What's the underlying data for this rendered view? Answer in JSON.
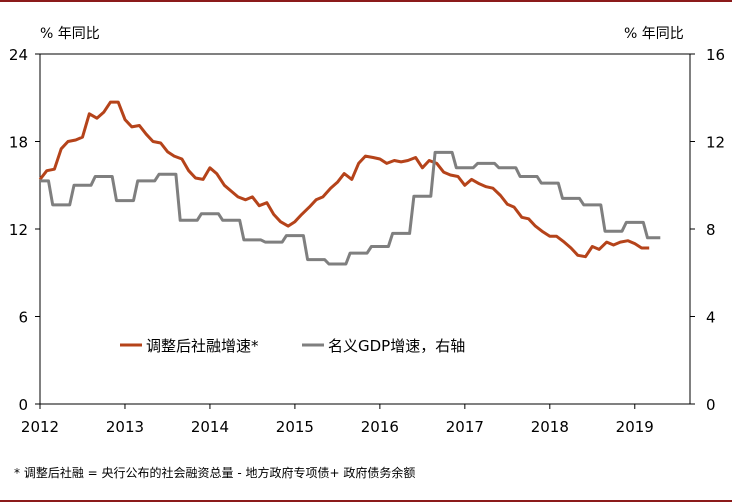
{
  "chart_data": {
    "type": "line",
    "left_axis_label": "% 年同比",
    "right_axis_label": "% 年同比",
    "x_ticks": [
      "2012",
      "2013",
      "2014",
      "2015",
      "2016",
      "2017",
      "2018",
      "2019"
    ],
    "y_left": {
      "lim": [
        0,
        24
      ],
      "ticks": [
        0,
        6,
        12,
        18,
        24
      ]
    },
    "y_right": {
      "lim": [
        0,
        16
      ],
      "ticks": [
        0,
        4,
        8,
        12,
        16
      ]
    },
    "grid": false,
    "legend_placement": "lower-left",
    "series": [
      {
        "name": "调整后社融增速*",
        "axis": "left",
        "color": "#b5431a",
        "points": [
          [
            2012.0,
            15.4
          ],
          [
            2012.08,
            16.0
          ],
          [
            2012.17,
            16.1
          ],
          [
            2012.25,
            17.5
          ],
          [
            2012.33,
            18.0
          ],
          [
            2012.42,
            18.1
          ],
          [
            2012.5,
            18.3
          ],
          [
            2012.58,
            19.9
          ],
          [
            2012.67,
            19.6
          ],
          [
            2012.75,
            20.0
          ],
          [
            2012.83,
            20.7
          ],
          [
            2012.92,
            20.7
          ],
          [
            2013.0,
            19.5
          ],
          [
            2013.08,
            19.0
          ],
          [
            2013.17,
            19.1
          ],
          [
            2013.25,
            18.5
          ],
          [
            2013.33,
            18.0
          ],
          [
            2013.42,
            17.9
          ],
          [
            2013.5,
            17.3
          ],
          [
            2013.58,
            17.0
          ],
          [
            2013.67,
            16.8
          ],
          [
            2013.75,
            16.0
          ],
          [
            2013.83,
            15.5
          ],
          [
            2013.92,
            15.4
          ],
          [
            2014.0,
            16.2
          ],
          [
            2014.08,
            15.8
          ],
          [
            2014.17,
            15.0
          ],
          [
            2014.25,
            14.6
          ],
          [
            2014.33,
            14.2
          ],
          [
            2014.42,
            14.0
          ],
          [
            2014.5,
            14.2
          ],
          [
            2014.58,
            13.6
          ],
          [
            2014.67,
            13.8
          ],
          [
            2014.75,
            13.0
          ],
          [
            2014.83,
            12.5
          ],
          [
            2014.92,
            12.2
          ],
          [
            2015.0,
            12.5
          ],
          [
            2015.08,
            13.0
          ],
          [
            2015.17,
            13.5
          ],
          [
            2015.25,
            14.0
          ],
          [
            2015.33,
            14.2
          ],
          [
            2015.42,
            14.8
          ],
          [
            2015.5,
            15.2
          ],
          [
            2015.58,
            15.8
          ],
          [
            2015.67,
            15.4
          ],
          [
            2015.75,
            16.5
          ],
          [
            2015.83,
            17.0
          ],
          [
            2015.92,
            16.9
          ],
          [
            2016.0,
            16.8
          ],
          [
            2016.08,
            16.5
          ],
          [
            2016.17,
            16.7
          ],
          [
            2016.25,
            16.6
          ],
          [
            2016.33,
            16.7
          ],
          [
            2016.42,
            16.9
          ],
          [
            2016.5,
            16.2
          ],
          [
            2016.58,
            16.7
          ],
          [
            2016.67,
            16.5
          ],
          [
            2016.75,
            15.9
          ],
          [
            2016.83,
            15.7
          ],
          [
            2016.92,
            15.6
          ],
          [
            2017.0,
            15.0
          ],
          [
            2017.08,
            15.4
          ],
          [
            2017.17,
            15.1
          ],
          [
            2017.25,
            14.9
          ],
          [
            2017.33,
            14.8
          ],
          [
            2017.42,
            14.3
          ],
          [
            2017.5,
            13.7
          ],
          [
            2017.58,
            13.5
          ],
          [
            2017.67,
            12.8
          ],
          [
            2017.75,
            12.7
          ],
          [
            2017.83,
            12.2
          ],
          [
            2017.92,
            11.8
          ],
          [
            2018.0,
            11.5
          ],
          [
            2018.08,
            11.5
          ],
          [
            2018.17,
            11.1
          ],
          [
            2018.25,
            10.7
          ],
          [
            2018.33,
            10.2
          ],
          [
            2018.42,
            10.1
          ],
          [
            2018.5,
            10.8
          ],
          [
            2018.58,
            10.6
          ],
          [
            2018.67,
            11.1
          ],
          [
            2018.75,
            10.9
          ],
          [
            2018.83,
            11.1
          ],
          [
            2018.92,
            11.2
          ],
          [
            2019.0,
            11.0
          ],
          [
            2019.08,
            10.7
          ],
          [
            2019.17,
            10.7
          ]
        ]
      },
      {
        "name": "名义GDP增速，右轴",
        "axis": "right",
        "color": "#7f7f7f",
        "points": [
          [
            2012.0,
            10.2
          ],
          [
            2012.1,
            10.2
          ],
          [
            2012.15,
            9.1
          ],
          [
            2012.35,
            9.1
          ],
          [
            2012.4,
            10.0
          ],
          [
            2012.6,
            10.0
          ],
          [
            2012.65,
            10.4
          ],
          [
            2012.85,
            10.4
          ],
          [
            2012.9,
            9.3
          ],
          [
            2013.1,
            9.3
          ],
          [
            2013.15,
            10.2
          ],
          [
            2013.35,
            10.2
          ],
          [
            2013.4,
            10.5
          ],
          [
            2013.6,
            10.5
          ],
          [
            2013.65,
            8.4
          ],
          [
            2013.85,
            8.4
          ],
          [
            2013.9,
            8.7
          ],
          [
            2014.1,
            8.7
          ],
          [
            2014.15,
            8.4
          ],
          [
            2014.35,
            8.4
          ],
          [
            2014.4,
            7.5
          ],
          [
            2014.6,
            7.5
          ],
          [
            2014.65,
            7.4
          ],
          [
            2014.85,
            7.4
          ],
          [
            2014.9,
            7.7
          ],
          [
            2015.1,
            7.7
          ],
          [
            2015.15,
            6.6
          ],
          [
            2015.35,
            6.6
          ],
          [
            2015.4,
            6.4
          ],
          [
            2015.6,
            6.4
          ],
          [
            2015.65,
            6.9
          ],
          [
            2015.85,
            6.9
          ],
          [
            2015.9,
            7.2
          ],
          [
            2016.1,
            7.2
          ],
          [
            2016.15,
            7.8
          ],
          [
            2016.35,
            7.8
          ],
          [
            2016.4,
            9.5
          ],
          [
            2016.6,
            9.5
          ],
          [
            2016.65,
            11.5
          ],
          [
            2016.85,
            11.5
          ],
          [
            2016.9,
            10.8
          ],
          [
            2017.1,
            10.8
          ],
          [
            2017.15,
            11.0
          ],
          [
            2017.35,
            11.0
          ],
          [
            2017.4,
            10.8
          ],
          [
            2017.6,
            10.8
          ],
          [
            2017.65,
            10.4
          ],
          [
            2017.85,
            10.4
          ],
          [
            2017.9,
            10.1
          ],
          [
            2018.1,
            10.1
          ],
          [
            2018.15,
            9.4
          ],
          [
            2018.35,
            9.4
          ],
          [
            2018.4,
            9.1
          ],
          [
            2018.6,
            9.1
          ],
          [
            2018.65,
            7.9
          ],
          [
            2018.85,
            7.9
          ],
          [
            2018.9,
            8.3
          ],
          [
            2019.1,
            8.3
          ],
          [
            2019.15,
            7.6
          ],
          [
            2019.3,
            7.6
          ]
        ]
      }
    ]
  },
  "footnote": "* 调整后社融 = 央行公布的社会融资总量 - 地方政府专项债+ 政府债务余额"
}
